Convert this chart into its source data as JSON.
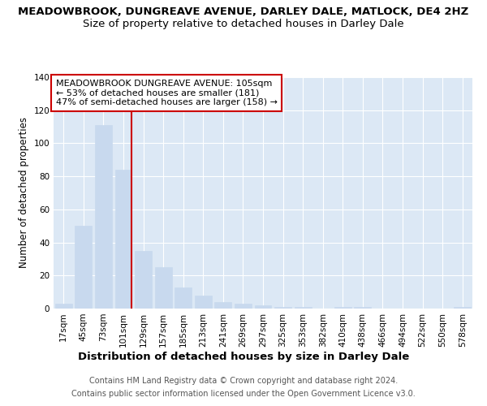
{
  "title1": "MEADOWBROOK, DUNGREAVE AVENUE, DARLEY DALE, MATLOCK, DE4 2HZ",
  "title2": "Size of property relative to detached houses in Darley Dale",
  "xlabel": "Distribution of detached houses by size in Darley Dale",
  "ylabel": "Number of detached properties",
  "categories": [
    "17sqm",
    "45sqm",
    "73sqm",
    "101sqm",
    "129sqm",
    "157sqm",
    "185sqm",
    "213sqm",
    "241sqm",
    "269sqm",
    "297sqm",
    "325sqm",
    "353sqm",
    "382sqm",
    "410sqm",
    "438sqm",
    "466sqm",
    "494sqm",
    "522sqm",
    "550sqm",
    "578sqm"
  ],
  "values": [
    3,
    50,
    111,
    84,
    35,
    25,
    13,
    8,
    4,
    3,
    2,
    1,
    1,
    0,
    1,
    1,
    0,
    0,
    0,
    0,
    1
  ],
  "bar_color": "#c8d9ee",
  "bar_edge_color": "#c8d9ee",
  "vline_x": 3.4,
  "vline_color": "#cc0000",
  "annotation_lines": [
    "MEADOWBROOK DUNGREAVE AVENUE: 105sqm",
    "← 53% of detached houses are smaller (181)",
    "47% of semi-detached houses are larger (158) →"
  ],
  "annotation_box_color": "#ffffff",
  "annotation_box_edge": "#cc0000",
  "ylim": [
    0,
    140
  ],
  "yticks": [
    0,
    20,
    40,
    60,
    80,
    100,
    120,
    140
  ],
  "fig_bg_color": "#ffffff",
  "plot_bg_color": "#dce8f5",
  "grid_color": "#ffffff",
  "footer1": "Contains HM Land Registry data © Crown copyright and database right 2024.",
  "footer2": "Contains public sector information licensed under the Open Government Licence v3.0.",
  "title1_fontsize": 9.5,
  "title2_fontsize": 9.5,
  "xlabel_fontsize": 9.5,
  "ylabel_fontsize": 8.5,
  "tick_fontsize": 7.5,
  "footer_fontsize": 7,
  "annotation_fontsize": 8
}
